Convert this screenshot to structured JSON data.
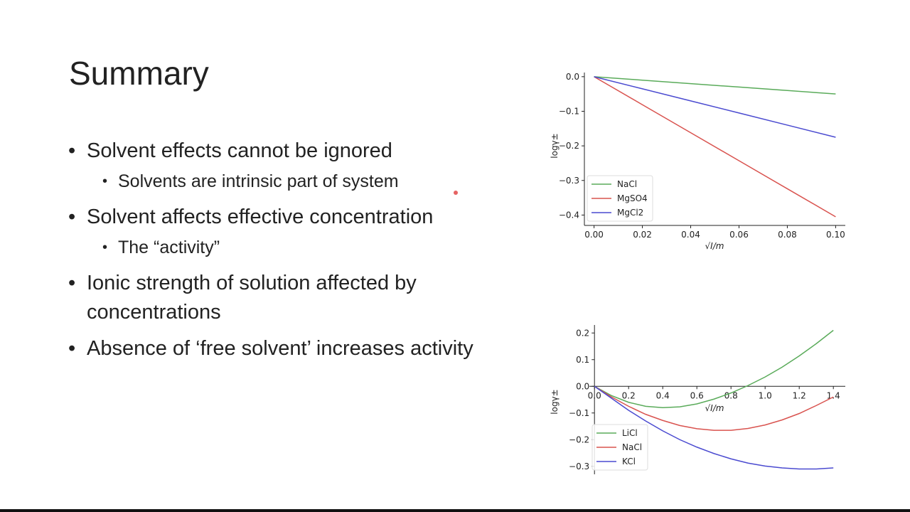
{
  "slide": {
    "title": "Summary",
    "bullets": [
      {
        "text": "Solvent effects cannot be ignored",
        "sub": [
          "Solvents are intrinsic part of system"
        ]
      },
      {
        "text": "Solvent affects effective concentration",
        "sub": [
          "The “activity”"
        ]
      },
      {
        "text": "Ionic strength of solution affected by concentrations",
        "sub": []
      },
      {
        "text": "Absence of ‘free solvent’ increases activity",
        "sub": []
      }
    ]
  },
  "chart_data": [
    {
      "type": "line",
      "x_label": "√I/m",
      "y_label": "logγ±",
      "x": [
        0,
        0.02,
        0.04,
        0.06,
        0.08,
        0.1
      ],
      "series": [
        {
          "name": "NaCl",
          "color": "#5aab5a",
          "values": [
            0,
            -0.01,
            -0.02,
            -0.03,
            -0.04,
            -0.05
          ]
        },
        {
          "name": "MgSO4",
          "color": "#d9534f",
          "values": [
            0,
            -0.081,
            -0.162,
            -0.243,
            -0.324,
            -0.405
          ]
        },
        {
          "name": "MgCl2",
          "color": "#4a4ad0",
          "values": [
            0,
            -0.035,
            -0.07,
            -0.105,
            -0.14,
            -0.175
          ]
        }
      ],
      "xlim": [
        -0.004,
        0.104
      ],
      "ylim": [
        -0.43,
        0.012
      ],
      "xticks": [
        {
          "value": 0,
          "label": "0.00"
        },
        0.02,
        0.04,
        0.06,
        0.08,
        {
          "value": 0.1,
          "label": "0.10"
        }
      ],
      "yticks": [
        {
          "value": 0,
          "label": "0.0"
        },
        {
          "value": -0.1,
          "label": "−0.1"
        },
        {
          "value": -0.2,
          "label": "−0.2"
        },
        {
          "value": -0.3,
          "label": "−0.3"
        },
        {
          "value": -0.4,
          "label": "−0.4"
        }
      ],
      "axes_at_zero": false,
      "legend": "lower left"
    },
    {
      "type": "line",
      "x_label": "√I/m",
      "y_label": "logγ±",
      "x": [
        0,
        0.1,
        0.2,
        0.3,
        0.4,
        0.5,
        0.6,
        0.7,
        0.8,
        0.9,
        1.0,
        1.1,
        1.2,
        1.3,
        1.4
      ],
      "series": [
        {
          "name": "LiCl",
          "color": "#5aab5a",
          "values": [
            0,
            -0.035,
            -0.06,
            -0.075,
            -0.08,
            -0.077,
            -0.066,
            -0.048,
            -0.025,
            0.003,
            0.035,
            0.072,
            0.114,
            0.16,
            0.21
          ]
        },
        {
          "name": "NaCl",
          "color": "#d9534f",
          "values": [
            0,
            -0.04,
            -0.075,
            -0.105,
            -0.128,
            -0.147,
            -0.159,
            -0.165,
            -0.165,
            -0.158,
            -0.145,
            -0.126,
            -0.102,
            -0.072,
            -0.04
          ]
        },
        {
          "name": "KCl",
          "color": "#4a4ad0",
          "values": [
            0,
            -0.045,
            -0.09,
            -0.13,
            -0.167,
            -0.2,
            -0.228,
            -0.252,
            -0.272,
            -0.288,
            -0.299,
            -0.306,
            -0.31,
            -0.31,
            -0.306
          ]
        }
      ],
      "xlim": [
        -0.03,
        1.47
      ],
      "ylim": [
        -0.33,
        0.23
      ],
      "xticks": [
        {
          "value": 0,
          "label": "0.0"
        },
        0.2,
        0.4,
        0.6,
        0.8,
        {
          "value": 1,
          "label": "1.0"
        },
        1.2,
        1.4
      ],
      "yticks": [
        0.2,
        0.1,
        {
          "value": 0,
          "label": "0.0"
        },
        {
          "value": -0.1,
          "label": "−0.1"
        },
        {
          "value": -0.2,
          "label": "−0.2"
        },
        {
          "value": -0.3,
          "label": "−0.3"
        }
      ],
      "axes_at_zero": true,
      "legend": "lower left"
    }
  ]
}
